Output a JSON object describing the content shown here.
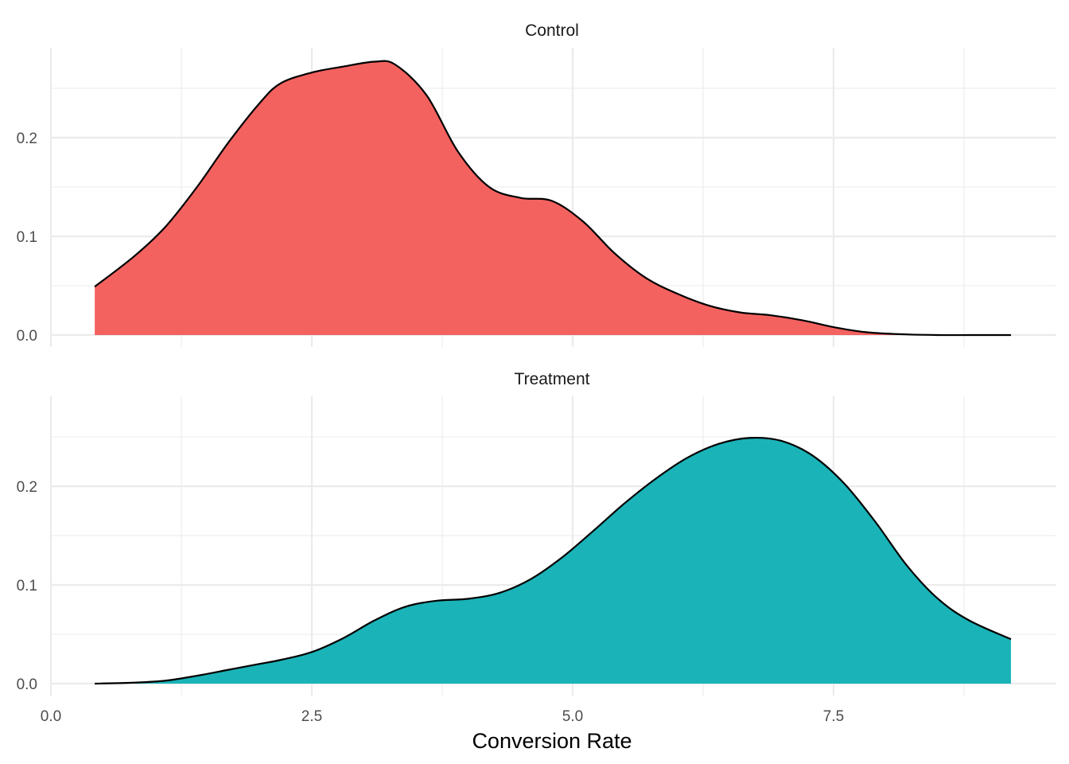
{
  "chart_data": {
    "type": "area",
    "subtype": "density",
    "facets": [
      "Control",
      "Treatment"
    ],
    "xlabel": "Conversion Rate",
    "ylabel": "",
    "x_ticks": [
      "0.0",
      "2.5",
      "5.0",
      "7.5"
    ],
    "y_ticks": [
      "0.0",
      "0.1",
      "0.2"
    ],
    "xlim": [
      0,
      9.6
    ],
    "ylim": [
      0,
      0.29
    ],
    "grid": true,
    "legend": "none",
    "series": [
      {
        "facet": "Control",
        "color": "#F46260",
        "x": [
          0.42,
          0.8,
          1.1,
          1.4,
          1.7,
          2.0,
          2.2,
          2.5,
          2.8,
          3.1,
          3.3,
          3.6,
          3.9,
          4.2,
          4.5,
          4.8,
          5.1,
          5.4,
          5.7,
          6.0,
          6.3,
          6.6,
          6.9,
          7.2,
          7.5,
          7.8,
          8.1,
          8.5,
          8.8,
          9.2
        ],
        "y": [
          0.049,
          0.08,
          0.11,
          0.15,
          0.195,
          0.235,
          0.255,
          0.266,
          0.272,
          0.277,
          0.274,
          0.243,
          0.186,
          0.15,
          0.139,
          0.136,
          0.115,
          0.083,
          0.058,
          0.042,
          0.03,
          0.023,
          0.02,
          0.015,
          0.008,
          0.003,
          0.001,
          0.0,
          0.0,
          0.0
        ]
      },
      {
        "facet": "Treatment",
        "color": "#1AB3B8",
        "x": [
          0.42,
          0.8,
          1.1,
          1.4,
          1.7,
          2.0,
          2.2,
          2.5,
          2.8,
          3.1,
          3.4,
          3.7,
          4.0,
          4.3,
          4.6,
          4.9,
          5.2,
          5.5,
          5.8,
          6.1,
          6.4,
          6.7,
          7.0,
          7.3,
          7.6,
          7.9,
          8.2,
          8.5,
          8.8,
          9.2
        ],
        "y": [
          0.0,
          0.001,
          0.003,
          0.008,
          0.014,
          0.02,
          0.024,
          0.032,
          0.046,
          0.064,
          0.078,
          0.084,
          0.086,
          0.092,
          0.106,
          0.128,
          0.155,
          0.183,
          0.208,
          0.229,
          0.243,
          0.249,
          0.246,
          0.231,
          0.203,
          0.164,
          0.12,
          0.086,
          0.064,
          0.045
        ]
      }
    ]
  }
}
